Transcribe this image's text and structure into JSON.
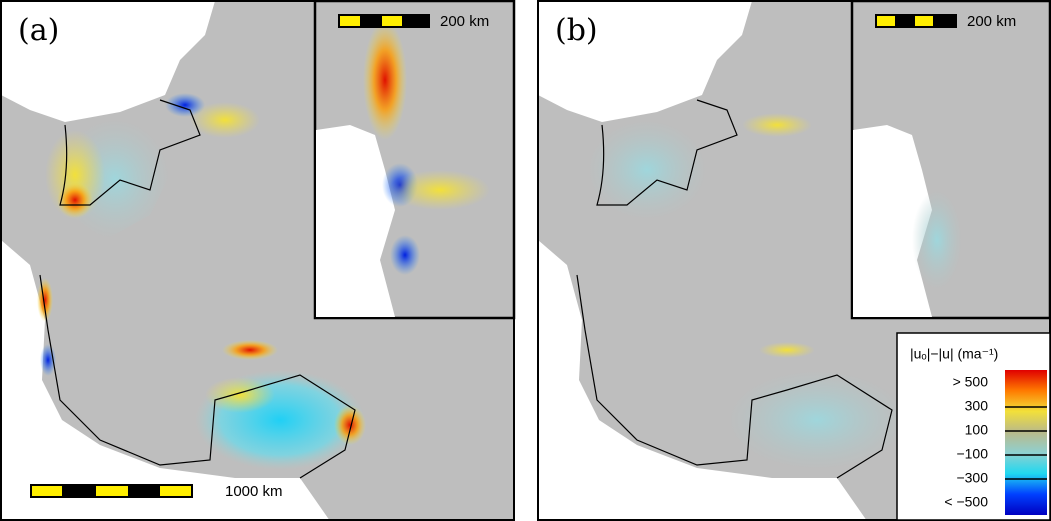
{
  "panels": [
    {
      "label": "(a)",
      "inset_scale": "200 km",
      "scale": "1000 km"
    },
    {
      "label": "(b)",
      "inset_scale": "200 km"
    }
  ],
  "legend": {
    "title": "|uₒ|−|u|  (ma⁻¹)",
    "labels": [
      "> 500",
      "300",
      "100",
      "−100",
      "−300",
      "< −500"
    ],
    "colors": [
      "#e00000",
      "#ff7a00",
      "#f2e03a",
      "#b9b98a",
      "#8fd0d0",
      "#20d8f0",
      "#0040ff",
      "#0000c0"
    ]
  }
}
